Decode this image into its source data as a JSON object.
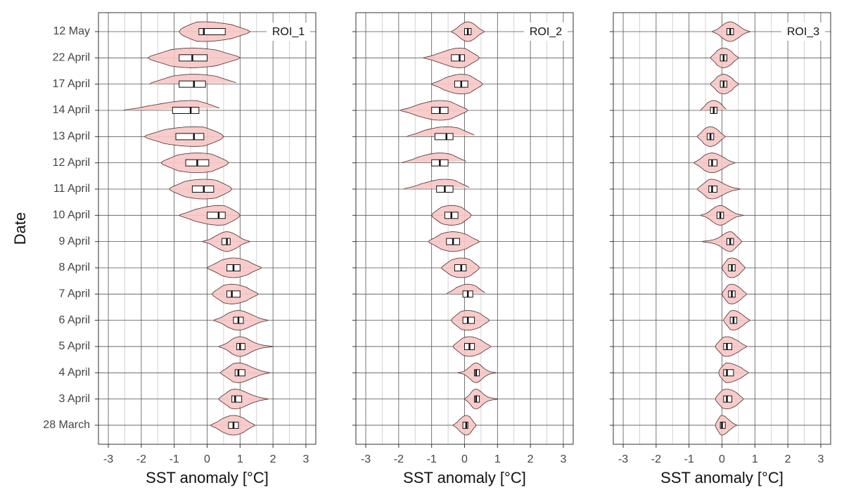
{
  "chart_data": [
    {
      "type": "violin",
      "title": "ROI_1",
      "x_label": "SST anomaly [°C]",
      "y_label": "Date",
      "categories": [
        "12 May",
        "22 April",
        "17 April",
        "14 April",
        "13 April",
        "12 April",
        "11 April",
        "10 April",
        "9 April",
        "8 April",
        "7 April",
        "6 April",
        "5 April",
        "4 April",
        "3 April",
        "28 March"
      ],
      "xlim": [
        -3.3,
        3.3
      ],
      "xticks": [
        -3,
        -2,
        -1,
        0,
        1,
        2,
        3
      ],
      "minor_xticks": [
        -2.5,
        -1.5,
        -0.5,
        0.5,
        1.5,
        2.5
      ],
      "grid": true,
      "color": "#f8c6c6",
      "min": [
        -0.85,
        -1.8,
        -1.75,
        -2.55,
        -1.9,
        -1.4,
        -1.15,
        -0.85,
        -0.15,
        0,
        0.15,
        0.2,
        0.35,
        0.4,
        0.35,
        0.1
      ],
      "q1": [
        -0.25,
        -0.85,
        -0.85,
        -1.05,
        -0.95,
        -0.65,
        -0.45,
        0,
        0.45,
        0.6,
        0.6,
        0.8,
        0.9,
        0.85,
        0.75,
        0.65
      ],
      "median": [
        -0.1,
        -0.45,
        -0.4,
        -0.5,
        -0.4,
        -0.3,
        -0.1,
        0.35,
        0.6,
        0.8,
        0.75,
        0.95,
        1.0,
        0.95,
        0.85,
        0.8
      ],
      "q3": [
        0.55,
        0,
        -0.05,
        -0.25,
        -0.1,
        0.05,
        0.2,
        0.55,
        0.7,
        1.0,
        1.0,
        1.1,
        1.15,
        1.15,
        1.05,
        0.95
      ],
      "max": [
        1.3,
        1.0,
        0.95,
        0.45,
        0.5,
        0.65,
        0.75,
        1.0,
        1.3,
        1.65,
        1.55,
        1.85,
        2.0,
        1.9,
        1.85,
        1.45
      ]
    },
    {
      "type": "violin",
      "title": "ROI_2",
      "x_label": "SST anomaly [°C]",
      "xlim": [
        -3.3,
        3.3
      ],
      "xticks": [
        -3,
        -2,
        -1,
        0,
        1,
        2,
        3
      ],
      "minor_xticks": [
        -2.5,
        -1.5,
        -0.5,
        0.5,
        1.5,
        2.5
      ],
      "grid": true,
      "color": "#f8c6c6",
      "min": [
        -0.4,
        -1.25,
        -1,
        -1.95,
        -1.75,
        -1.9,
        -1.85,
        -1,
        -1.1,
        -0.7,
        -0.55,
        -0.4,
        -0.35,
        -0.2,
        0,
        -0.35
      ],
      "q1": [
        0,
        -0.4,
        -0.3,
        -1.0,
        -0.9,
        -1.0,
        -0.85,
        -0.6,
        -0.55,
        -0.3,
        -0.05,
        -0.05,
        0,
        0.3,
        0.3,
        -0.05
      ],
      "median": [
        0.1,
        -0.15,
        -0.1,
        -0.75,
        -0.55,
        -0.75,
        -0.6,
        -0.4,
        -0.35,
        -0.1,
        0.1,
        0.1,
        0.15,
        0.35,
        0.35,
        0.05
      ],
      "q3": [
        0.2,
        0,
        0.1,
        -0.5,
        -0.35,
        -0.5,
        -0.35,
        -0.2,
        -0.15,
        0.05,
        0.25,
        0.3,
        0.3,
        0.45,
        0.45,
        0.1
      ],
      "max": [
        0.6,
        0.45,
        0.55,
        0.1,
        0.35,
        0.1,
        0.2,
        0.2,
        0.45,
        0.45,
        0.65,
        0.75,
        0.8,
        0.95,
        1.0,
        0.35
      ]
    },
    {
      "type": "violin",
      "title": "ROI_3",
      "x_label": "SST anomaly [°C]",
      "xlim": [
        -3.3,
        3.3
      ],
      "xticks": [
        -3,
        -2,
        -1,
        0,
        1,
        2,
        3
      ],
      "minor_xticks": [
        -2.5,
        -1.5,
        -0.5,
        0.5,
        1.5,
        2.5
      ],
      "grid": true,
      "color": "#f8c6c6",
      "min": [
        -0.3,
        -0.35,
        -0.35,
        -0.65,
        -0.75,
        -0.85,
        -0.75,
        -0.65,
        -0.6,
        0,
        0,
        0.05,
        -0.2,
        -0.1,
        -0.2,
        -0.2
      ],
      "q1": [
        0.15,
        -0.05,
        -0.05,
        -0.35,
        -0.45,
        -0.4,
        -0.4,
        -0.15,
        0.15,
        0.2,
        0.2,
        0.25,
        0.05,
        0.05,
        0.05,
        -0.05
      ],
      "median": [
        0.25,
        0.05,
        0.05,
        -0.25,
        -0.35,
        -0.3,
        -0.3,
        -0.05,
        0.25,
        0.3,
        0.3,
        0.35,
        0.15,
        0.15,
        0.15,
        0
      ],
      "q3": [
        0.35,
        0.15,
        0.15,
        -0.15,
        -0.25,
        -0.15,
        -0.15,
        0.05,
        0.35,
        0.4,
        0.4,
        0.45,
        0.3,
        0.35,
        0.3,
        0.1
      ],
      "max": [
        0.85,
        0.5,
        0.5,
        0.15,
        0.1,
        0.4,
        0.55,
        0.65,
        0.6,
        0.7,
        0.75,
        0.85,
        0.75,
        0.8,
        0.65,
        0.45
      ]
    }
  ]
}
